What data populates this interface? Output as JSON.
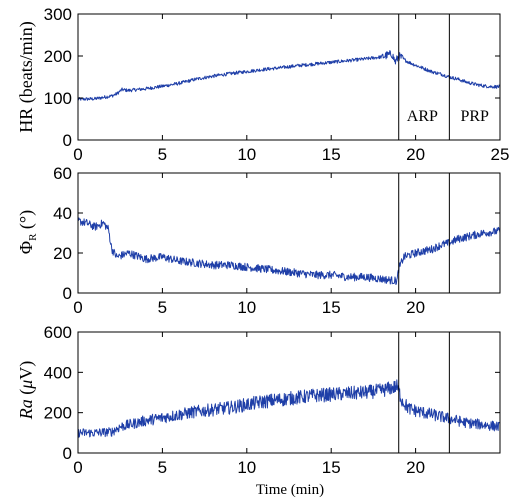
{
  "chart_data": [
    {
      "type": "line",
      "ylabel": "HR (beats/min)",
      "xlim": [
        0,
        25
      ],
      "ylim": [
        0,
        300
      ],
      "xticks": [
        "0",
        "5",
        "10",
        "15",
        "20",
        "25"
      ],
      "yticks": [
        "0",
        "100",
        "200",
        "300"
      ],
      "markers": [
        19,
        22
      ],
      "annotations": [
        {
          "text": "ARP",
          "x": 20.4,
          "y": 45
        },
        {
          "text": "PRP",
          "x": 23.5,
          "y": 45
        }
      ],
      "color": "#1f3fa8",
      "x": [
        0,
        1,
        2,
        2.3,
        2.6,
        3,
        4,
        5,
        6,
        7,
        8,
        9,
        10,
        11,
        12,
        13,
        14,
        15,
        16,
        17,
        18,
        18.6,
        18.8,
        19,
        19.3,
        19.6,
        20,
        20.5,
        21,
        21.5,
        22,
        22.5,
        23,
        23.5,
        24,
        24.5,
        25
      ],
      "y": [
        97,
        98,
        105,
        110,
        120,
        118,
        122,
        128,
        135,
        145,
        152,
        158,
        163,
        168,
        172,
        177,
        181,
        185,
        189,
        193,
        198,
        205,
        185,
        200,
        192,
        185,
        178,
        170,
        162,
        157,
        150,
        145,
        138,
        133,
        129,
        127,
        127
      ]
    },
    {
      "type": "line",
      "ylabel": "Φ_R (°)",
      "xlim": [
        0,
        25
      ],
      "ylim": [
        0,
        60
      ],
      "xticks": [
        "0",
        "5",
        "10",
        "15",
        "20"
      ],
      "yticks": [
        "0",
        "20",
        "40",
        "60"
      ],
      "markers": [
        19,
        22
      ],
      "color": "#1f3fa8",
      "x": [
        0,
        0.5,
        1,
        1.5,
        1.8,
        2,
        2.3,
        3,
        4,
        5,
        6,
        7,
        8,
        9,
        10,
        11,
        12,
        13,
        14,
        15,
        16,
        17,
        18,
        18.9,
        19,
        19.3,
        20,
        21,
        21.5,
        22,
        22.5,
        23,
        24,
        25
      ],
      "y": [
        36,
        35,
        33,
        35,
        32,
        22,
        18,
        20,
        17,
        18,
        16,
        15,
        14,
        14,
        13,
        12,
        11,
        10,
        9,
        9,
        8,
        8,
        7,
        6,
        12,
        18,
        20,
        22,
        24,
        25,
        27,
        28,
        30,
        31
      ]
    },
    {
      "type": "line",
      "ylabel": "Ra (μV)",
      "xlabel": "Time (min)",
      "xlim": [
        0,
        25
      ],
      "ylim": [
        0,
        600
      ],
      "xticks": [
        "0",
        "5",
        "10",
        "15",
        "20"
      ],
      "yticks": [
        "0",
        "200",
        "400",
        "600"
      ],
      "markers": [
        19,
        22
      ],
      "color": "#1f3fa8",
      "x": [
        0,
        1,
        2,
        2.5,
        3,
        4,
        5,
        6,
        7,
        8,
        9,
        10,
        11,
        12,
        13,
        14,
        15,
        16,
        17,
        18,
        18.9,
        19.2,
        19.6,
        20,
        21,
        22,
        23,
        24,
        25
      ],
      "y": [
        100,
        100,
        105,
        130,
        140,
        160,
        175,
        190,
        205,
        215,
        225,
        240,
        255,
        265,
        275,
        285,
        290,
        295,
        300,
        310,
        330,
        260,
        220,
        210,
        190,
        170,
        150,
        140,
        130
      ]
    }
  ]
}
